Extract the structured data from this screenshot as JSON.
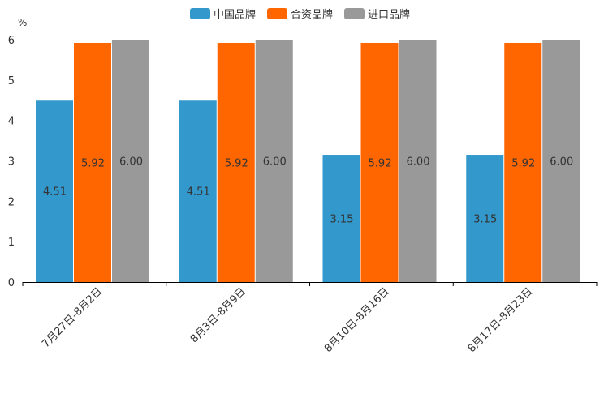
{
  "chart_data": {
    "type": "bar",
    "unit_label": "%",
    "categories": [
      "7月27日-8月2日",
      "8月3日-8月9日",
      "8月10日-8月16日",
      "8月17日-8月23日"
    ],
    "series": [
      {
        "name": "中国品牌",
        "color": "#3398cc",
        "values": [
          4.51,
          4.51,
          3.15,
          3.15
        ]
      },
      {
        "name": "合资品牌",
        "color": "#ff6600",
        "values": [
          5.92,
          5.92,
          5.92,
          5.92
        ]
      },
      {
        "name": "进口品牌",
        "color": "#999999",
        "values": [
          6.0,
          6.0,
          6.0,
          6.0
        ]
      }
    ],
    "data_labels": [
      [
        "4.51",
        "4.51",
        "3.15",
        "3.15"
      ],
      [
        "5.92",
        "5.92",
        "5.92",
        "5.92"
      ],
      [
        "6.00",
        "6.00",
        "6.00",
        "6.00"
      ]
    ],
    "ylim": [
      0,
      6
    ],
    "yticks": [
      0,
      1,
      2,
      3,
      4,
      5,
      6
    ],
    "legend_position": "top-center",
    "grid": false
  }
}
